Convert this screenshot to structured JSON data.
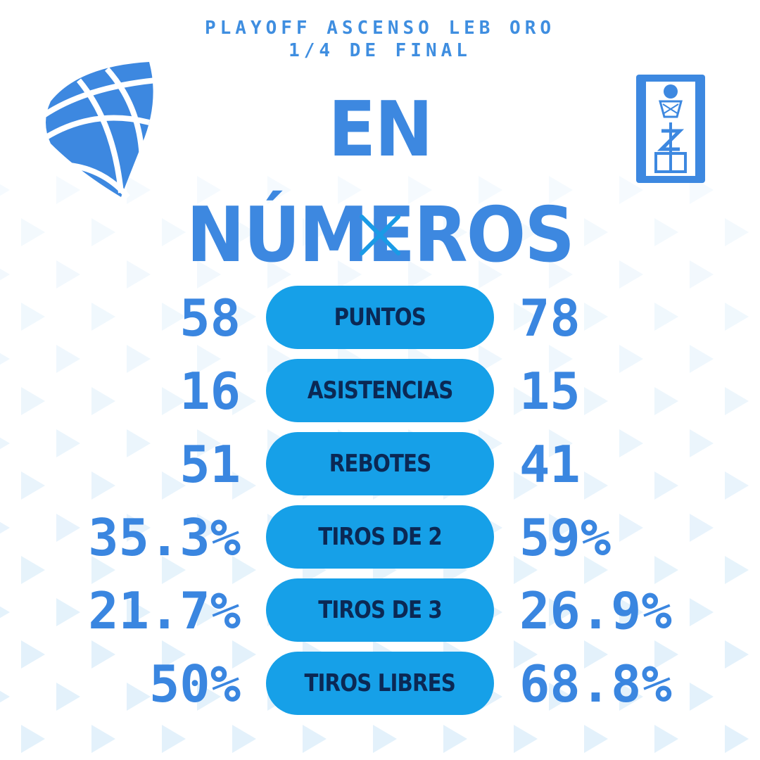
{
  "header": {
    "line1": "PLAYOFF ASCENSO LEB ORO",
    "line2": "1/4 DE FINAL",
    "title": "EN NÚMEROS"
  },
  "logos": {
    "left": "basketball-shield-logo",
    "right": "club-crest-logo"
  },
  "versus_icon": "x-icon",
  "colors": {
    "accent": "#3d88e0",
    "pill": "#16a0e8",
    "pill_text": "#0b2854",
    "pattern": "#e3f1fb"
  },
  "stats": [
    {
      "label": "PUNTOS",
      "left": "58",
      "right": "78"
    },
    {
      "label": "ASISTENCIAS",
      "left": "16",
      "right": "15"
    },
    {
      "label": "REBOTES",
      "left": "51",
      "right": "41"
    },
    {
      "label": "TIROS DE 2",
      "left": "35.3%",
      "right": "59%"
    },
    {
      "label": "TIROS DE 3",
      "left": "21.7%",
      "right": "26.9%"
    },
    {
      "label": "TIROS LIBRES",
      "left": "50%",
      "right": "68.8%"
    }
  ]
}
